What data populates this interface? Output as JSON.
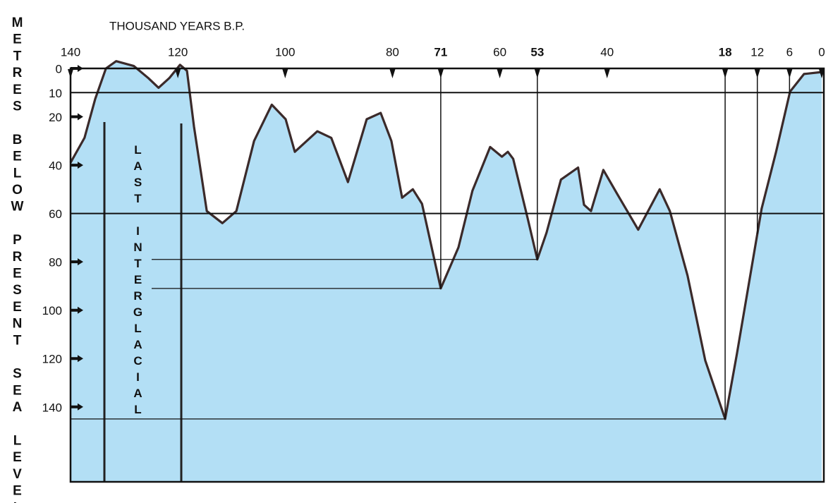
{
  "chart_data": {
    "type": "area",
    "xlabel": "THOUSAND YEARS B.P.",
    "ylabel": "METRES BELOW PRESENT SEA LEVEL",
    "annotation": "LAST INTERGLACIAL",
    "x": [
      140,
      137.4,
      135.4,
      133.4,
      131.5,
      128.2,
      125.5,
      123.6,
      121.6,
      119.6,
      118.3,
      117,
      114.6,
      111.7,
      109.1,
      105.8,
      102.5,
      99.9,
      98.2,
      94,
      91.4,
      88.3,
      84.8,
      82.2,
      80.2,
      78.2,
      76.2,
      74.5,
      71,
      67.7,
      65.1,
      61.8,
      59.6,
      58.5,
      57.5,
      54.8,
      53,
      51.3,
      48.6,
      45.4,
      44.3,
      43,
      40.7,
      38.1,
      34.2,
      30.2,
      28.3,
      25,
      21.7,
      18,
      15.8,
      11.2,
      8.5,
      5.9,
      3.3,
      0
    ],
    "values": [
      39,
      28.7,
      12.6,
      0,
      -3,
      -1,
      4,
      8,
      4,
      -1.5,
      1,
      24,
      59,
      64,
      59,
      30,
      15,
      21,
      34.5,
      26,
      28.7,
      47,
      21,
      18.4,
      30,
      53.5,
      50,
      56,
      91,
      74,
      50.6,
      32.5,
      36.5,
      34.5,
      37.4,
      62,
      79,
      68,
      46,
      41,
      56.4,
      59,
      42,
      52,
      66.7,
      50,
      59,
      85.7,
      120.8,
      145,
      118,
      58,
      34.5,
      9.6,
      2.3,
      1.5
    ],
    "color": "#b3dff5",
    "line_color": "#3b2a2a",
    "xlim": [
      140,
      0
    ],
    "ylim": [
      0,
      171
    ],
    "y_reversed": true,
    "xticks": [
      140,
      120,
      100,
      80,
      71,
      60,
      53,
      40,
      18,
      12,
      6,
      0
    ],
    "yticks": [
      0,
      10,
      20,
      40,
      60,
      80,
      100,
      120,
      140
    ]
  }
}
